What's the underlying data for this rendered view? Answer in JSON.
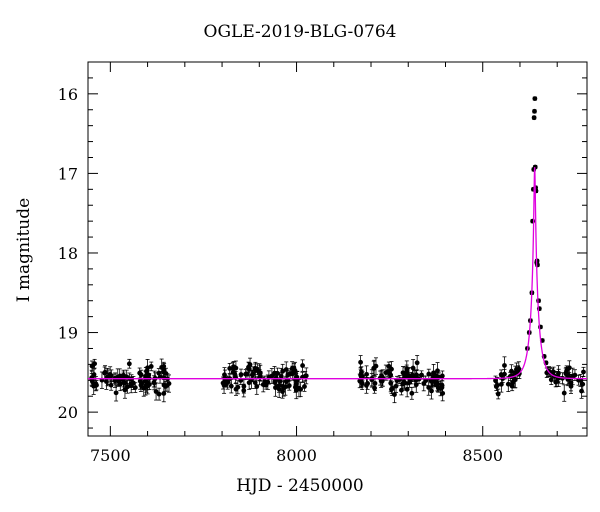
{
  "chart_data": {
    "type": "scatter",
    "title": "OGLE-2019-BLG-0764",
    "xlabel": "HJD - 2450000",
    "ylabel": "I magnitude",
    "xlim": [
      7440,
      8780
    ],
    "ylim": [
      20.3,
      15.6
    ],
    "y_inverted": true,
    "xticks": [
      7500,
      8000,
      8500
    ],
    "yticks": [
      16,
      17,
      18,
      19,
      20
    ],
    "grid": false,
    "colors": {
      "data": "#000000",
      "model": "#e000e0",
      "axes": "#000000"
    },
    "series": [
      {
        "kind": "observations_with_errorbars",
        "season_ranges": [
          [
            7450,
            7660
          ],
          [
            7800,
            8030
          ],
          [
            8165,
            8400
          ],
          [
            8530,
            8775
          ]
        ],
        "baseline_mag": 19.58,
        "peak_points": [
          [
            8620,
            19.2
          ],
          [
            8625,
            19.0
          ],
          [
            8628,
            18.85
          ],
          [
            8632,
            18.5
          ],
          [
            8634,
            17.6
          ],
          [
            8636,
            17.2
          ],
          [
            8637,
            16.95
          ],
          [
            8638,
            16.3
          ],
          [
            8639,
            16.22
          ],
          [
            8640,
            16.06
          ],
          [
            8641,
            16.92
          ],
          [
            8642,
            17.18
          ],
          [
            8643,
            17.22
          ],
          [
            8645,
            18.12
          ],
          [
            8646,
            18.1
          ],
          [
            8647,
            18.15
          ],
          [
            8650,
            18.6
          ],
          [
            8652,
            18.7
          ],
          [
            8655,
            18.93
          ],
          [
            8660,
            19.1
          ],
          [
            8665,
            19.3
          ],
          [
            8670,
            19.38
          ]
        ]
      },
      {
        "kind": "model_curve",
        "t0": 8639.5,
        "tE": 22,
        "u0": 0.078,
        "Fs": 1.0,
        "Fb": 0.12
      }
    ]
  }
}
